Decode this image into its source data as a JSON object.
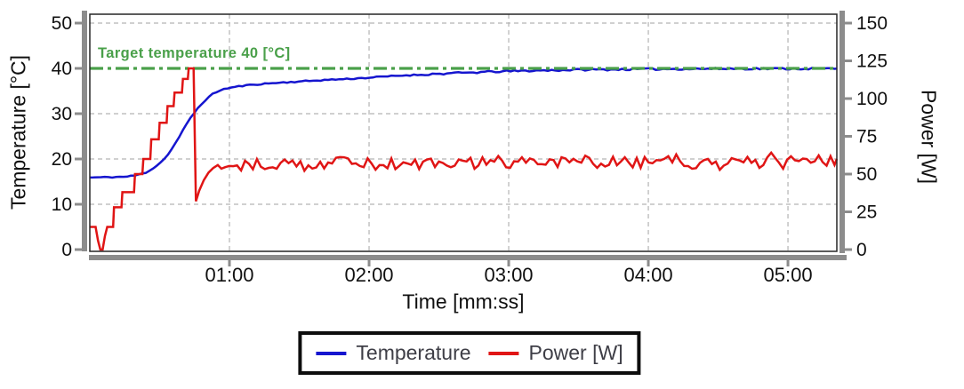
{
  "chart_data": {
    "type": "line",
    "title": "",
    "xlabel": "Time [mm:ss]",
    "ylabel_left": "Temperature [°C]",
    "ylabel_right": "Power [W]",
    "x_max_s": 321,
    "x_ticks": [
      {
        "t": 60,
        "label": "01:00"
      },
      {
        "t": 120,
        "label": "02:00"
      },
      {
        "t": 180,
        "label": "03:00"
      },
      {
        "t": 240,
        "label": "04:00"
      },
      {
        "t": 300,
        "label": "05:00"
      }
    ],
    "y_left": {
      "label": "Temperature [°C]",
      "range": [
        0,
        50
      ],
      "ticks": [
        0,
        10,
        20,
        30,
        40,
        50
      ]
    },
    "y_right": {
      "label": "Power [W]",
      "range": [
        0,
        150
      ],
      "ticks": [
        0,
        25,
        50,
        75,
        100,
        125,
        150
      ]
    },
    "grid": true,
    "legend_position": "bottom-center",
    "target_line": {
      "value": 40,
      "axis": "left",
      "label": "Target temperature 40 [°C]",
      "style": "dash-dot",
      "color": "#4aa04a"
    },
    "series": [
      {
        "name": "Temperature",
        "axis": "left",
        "unit": "°C",
        "color": "#1515cf",
        "noise_amp": 0.14,
        "noise_from_s": 0,
        "keypoints": [
          [
            0,
            15.9
          ],
          [
            10,
            16.0
          ],
          [
            16,
            16.1
          ],
          [
            20,
            16.4
          ],
          [
            24,
            17.0
          ],
          [
            28,
            18.2
          ],
          [
            32,
            20.0
          ],
          [
            35,
            22.0
          ],
          [
            38,
            24.5
          ],
          [
            41,
            27.2
          ],
          [
            44,
            29.6
          ],
          [
            47,
            31.6
          ],
          [
            50,
            33.2
          ],
          [
            53,
            34.4
          ],
          [
            56,
            35.2
          ],
          [
            60,
            35.7
          ],
          [
            65,
            36.1
          ],
          [
            70,
            36.4
          ],
          [
            80,
            36.8
          ],
          [
            90,
            37.1
          ],
          [
            100,
            37.4
          ],
          [
            115,
            37.8
          ],
          [
            130,
            38.3
          ],
          [
            145,
            38.7
          ],
          [
            160,
            39.0
          ],
          [
            175,
            39.3
          ],
          [
            190,
            39.5
          ],
          [
            210,
            39.7
          ],
          [
            230,
            39.8
          ],
          [
            255,
            39.9
          ],
          [
            285,
            39.95
          ],
          [
            321,
            39.95
          ]
        ]
      },
      {
        "name": "Power [W]",
        "axis": "right",
        "unit": "W",
        "color": "#e01515",
        "noise_amp": 4.3,
        "noise_from_s": 55,
        "keypoints": [
          [
            0,
            15
          ],
          [
            2.5,
            15
          ],
          [
            3.5,
            6
          ],
          [
            4.5,
            0
          ],
          [
            5.5,
            0
          ],
          [
            6.5,
            9
          ],
          [
            7.5,
            15
          ],
          [
            10,
            15
          ],
          [
            10.4,
            28
          ],
          [
            13.6,
            28
          ],
          [
            14,
            38
          ],
          [
            19,
            38
          ],
          [
            19.4,
            50
          ],
          [
            22.6,
            50
          ],
          [
            23,
            60
          ],
          [
            26,
            60
          ],
          [
            26.4,
            73
          ],
          [
            29.6,
            73
          ],
          [
            30,
            84
          ],
          [
            33,
            84
          ],
          [
            33.4,
            95
          ],
          [
            36,
            95
          ],
          [
            36.4,
            104
          ],
          [
            39.6,
            104
          ],
          [
            40,
            113
          ],
          [
            42.1,
            113
          ],
          [
            42.5,
            120
          ],
          [
            44.6,
            120
          ],
          [
            45.6,
            32
          ],
          [
            47,
            39
          ],
          [
            49,
            46
          ],
          [
            51,
            51
          ],
          [
            53,
            54
          ],
          [
            55,
            56
          ],
          [
            70,
            57
          ],
          [
            90,
            56
          ],
          [
            110,
            58
          ],
          [
            130,
            56
          ],
          [
            150,
            57
          ],
          [
            170,
            58
          ],
          [
            190,
            57
          ],
          [
            210,
            58
          ],
          [
            230,
            57
          ],
          [
            250,
            59
          ],
          [
            270,
            57
          ],
          [
            290,
            58
          ],
          [
            305,
            58
          ],
          [
            321,
            60
          ]
        ]
      }
    ],
    "colors": {
      "grid": "#b3b3b3",
      "axis_bar": "#8c8c8c",
      "plot_border": "#262626",
      "tick_text": "#101010",
      "legend_text": "#3e3e46"
    }
  }
}
